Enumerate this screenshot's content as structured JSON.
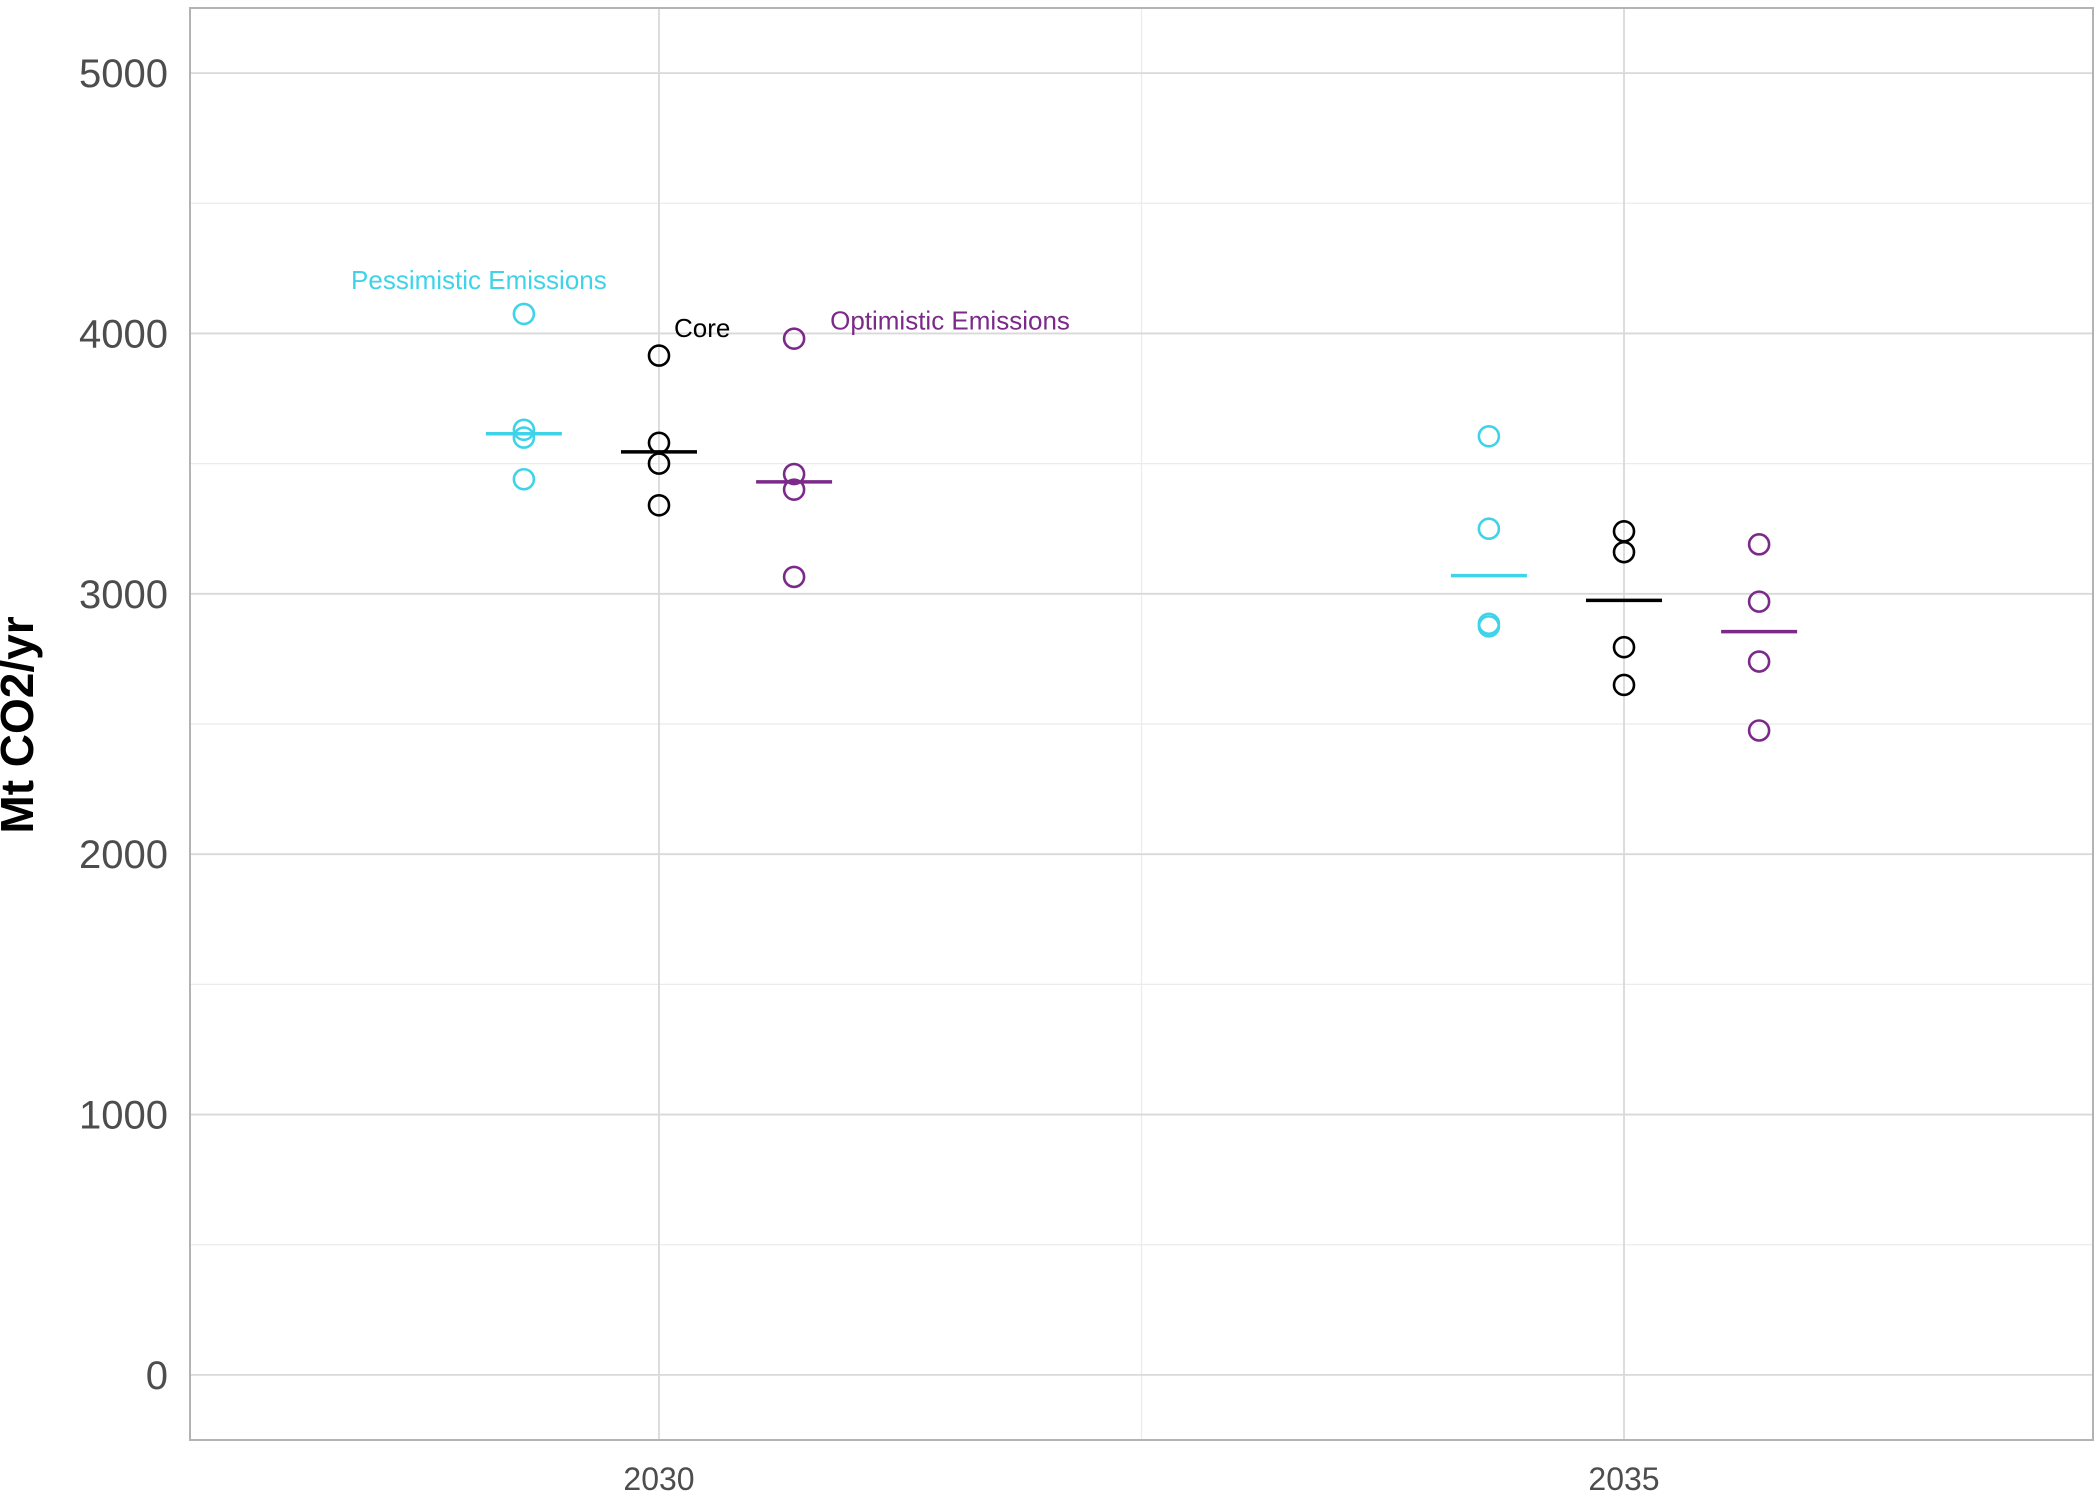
{
  "chart_data": {
    "type": "scatter",
    "title": "",
    "xlabel": "",
    "ylabel": "Mt CO2/yr",
    "ylim": [
      -250,
      5250
    ],
    "y_ticks": [
      "0",
      "1000",
      "2000",
      "3000",
      "4000",
      "5000"
    ],
    "x_range": [
      2027.57,
      2037.43
    ],
    "x_ticks": [
      "2030",
      "2035"
    ],
    "grid": true,
    "colors": {
      "Pessimistic Emissions": "#3fd3ea",
      "Core": "#000000",
      "Optimistic Emissions": "#7b2a8a",
      "gridline": "#d9d9d9",
      "minor_gridline": "#ebebeb",
      "panel_border": "#b3b3b3",
      "tick_text": "#4d4d4d"
    },
    "annotations": [
      {
        "text": "Pessimistic Emissions",
        "series": "Pessimistic Emissions"
      },
      {
        "text": "Core",
        "series": "Core"
      },
      {
        "text": "Optimistic Emissions",
        "series": "Optimistic Emissions"
      }
    ],
    "series": [
      {
        "key": "Pessimistic Emissions",
        "x": 2029.3,
        "points": [
          4075,
          3630,
          3600,
          3440
        ],
        "mean": 3615
      },
      {
        "key": "Core",
        "x": 2030.0,
        "points": [
          3915,
          3580,
          3500,
          3340
        ],
        "mean": 3545
      },
      {
        "key": "Optimistic Emissions",
        "x": 2030.7,
        "points": [
          3980,
          3460,
          3400,
          3065
        ],
        "mean": 3430
      },
      {
        "key": "Pessimistic Emissions",
        "x": 2034.3,
        "points": [
          3605,
          3250,
          2885,
          2875
        ],
        "mean": 3070
      },
      {
        "key": "Core",
        "x": 2035.0,
        "points": [
          3240,
          3160,
          2795,
          2650
        ],
        "mean": 2975
      },
      {
        "key": "Optimistic Emissions",
        "x": 2035.7,
        "points": [
          3190,
          2970,
          2740,
          2475
        ],
        "mean": 2855
      }
    ]
  }
}
